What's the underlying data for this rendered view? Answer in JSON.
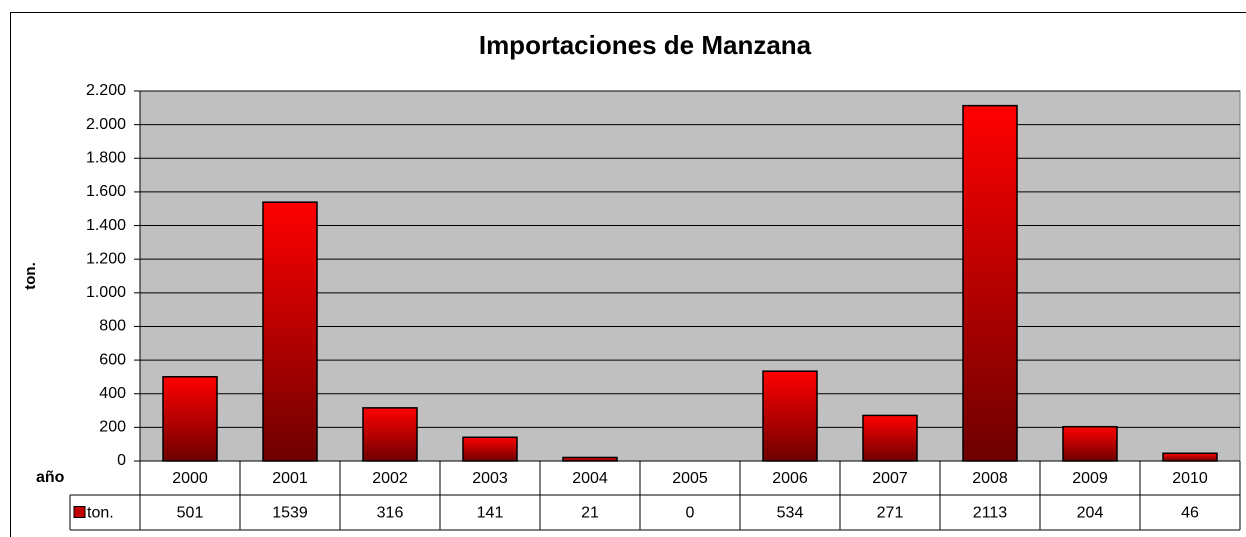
{
  "chart_data": {
    "type": "bar",
    "title": "Importaciones de Manzana",
    "y_label": "ton.",
    "x_label": "año",
    "categories": [
      "2000",
      "2001",
      "2002",
      "2003",
      "2004",
      "2005",
      "2006",
      "2007",
      "2008",
      "2009",
      "2010"
    ],
    "series": [
      {
        "name": "ton.",
        "color": "#ff0000",
        "values": [
          501,
          1539,
          316,
          141,
          21,
          0,
          534,
          271,
          2113,
          204,
          46
        ]
      }
    ],
    "ylim": [
      0,
      2200
    ],
    "yticks": [
      0,
      200,
      400,
      600,
      800,
      {
        "value": 1000,
        "label": "1.000"
      },
      {
        "value": 1200,
        "label": "1.200"
      },
      {
        "value": 1400,
        "label": "1.400"
      },
      {
        "value": 1600,
        "label": "1.600"
      },
      {
        "value": 1800,
        "label": "1.800"
      },
      {
        "value": 2000,
        "label": "2.000"
      },
      {
        "value": 2200,
        "label": "2.200"
      }
    ],
    "grid": true,
    "plot_background": "#c0c0c0"
  }
}
